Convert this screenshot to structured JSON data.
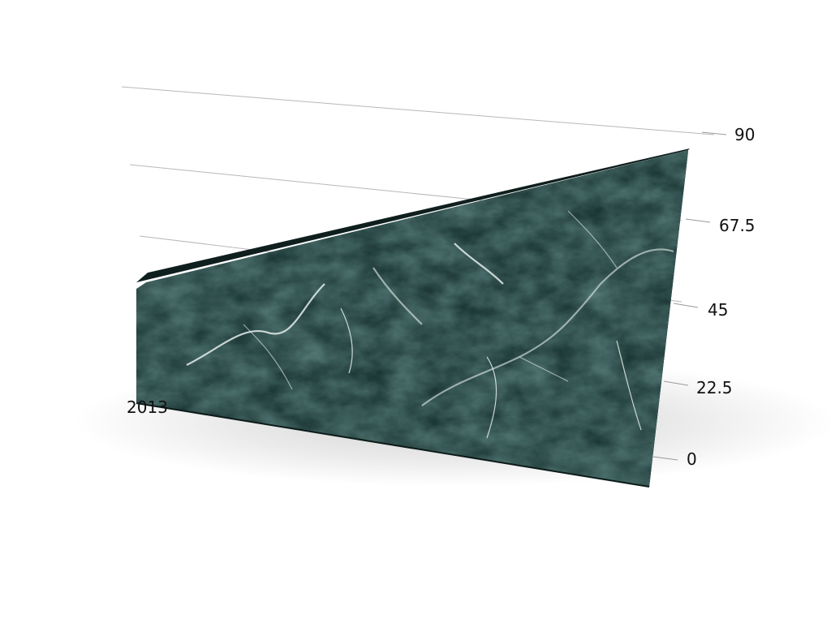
{
  "chart_data": {
    "type": "area",
    "style": "3d-perspective",
    "categories": [
      "2013",
      ""
    ],
    "series": [
      {
        "values": [
          42,
          83
        ]
      }
    ],
    "ylim": [
      0,
      90
    ],
    "yticks": [
      "0",
      "22.5",
      "45",
      "67.5",
      "90"
    ],
    "grid": true,
    "legend": "none",
    "colors": {
      "fill": "#1d3a38",
      "edge": "#0f1f1e",
      "vein": "#e6eeec",
      "grid": "#b8b8b8"
    }
  }
}
